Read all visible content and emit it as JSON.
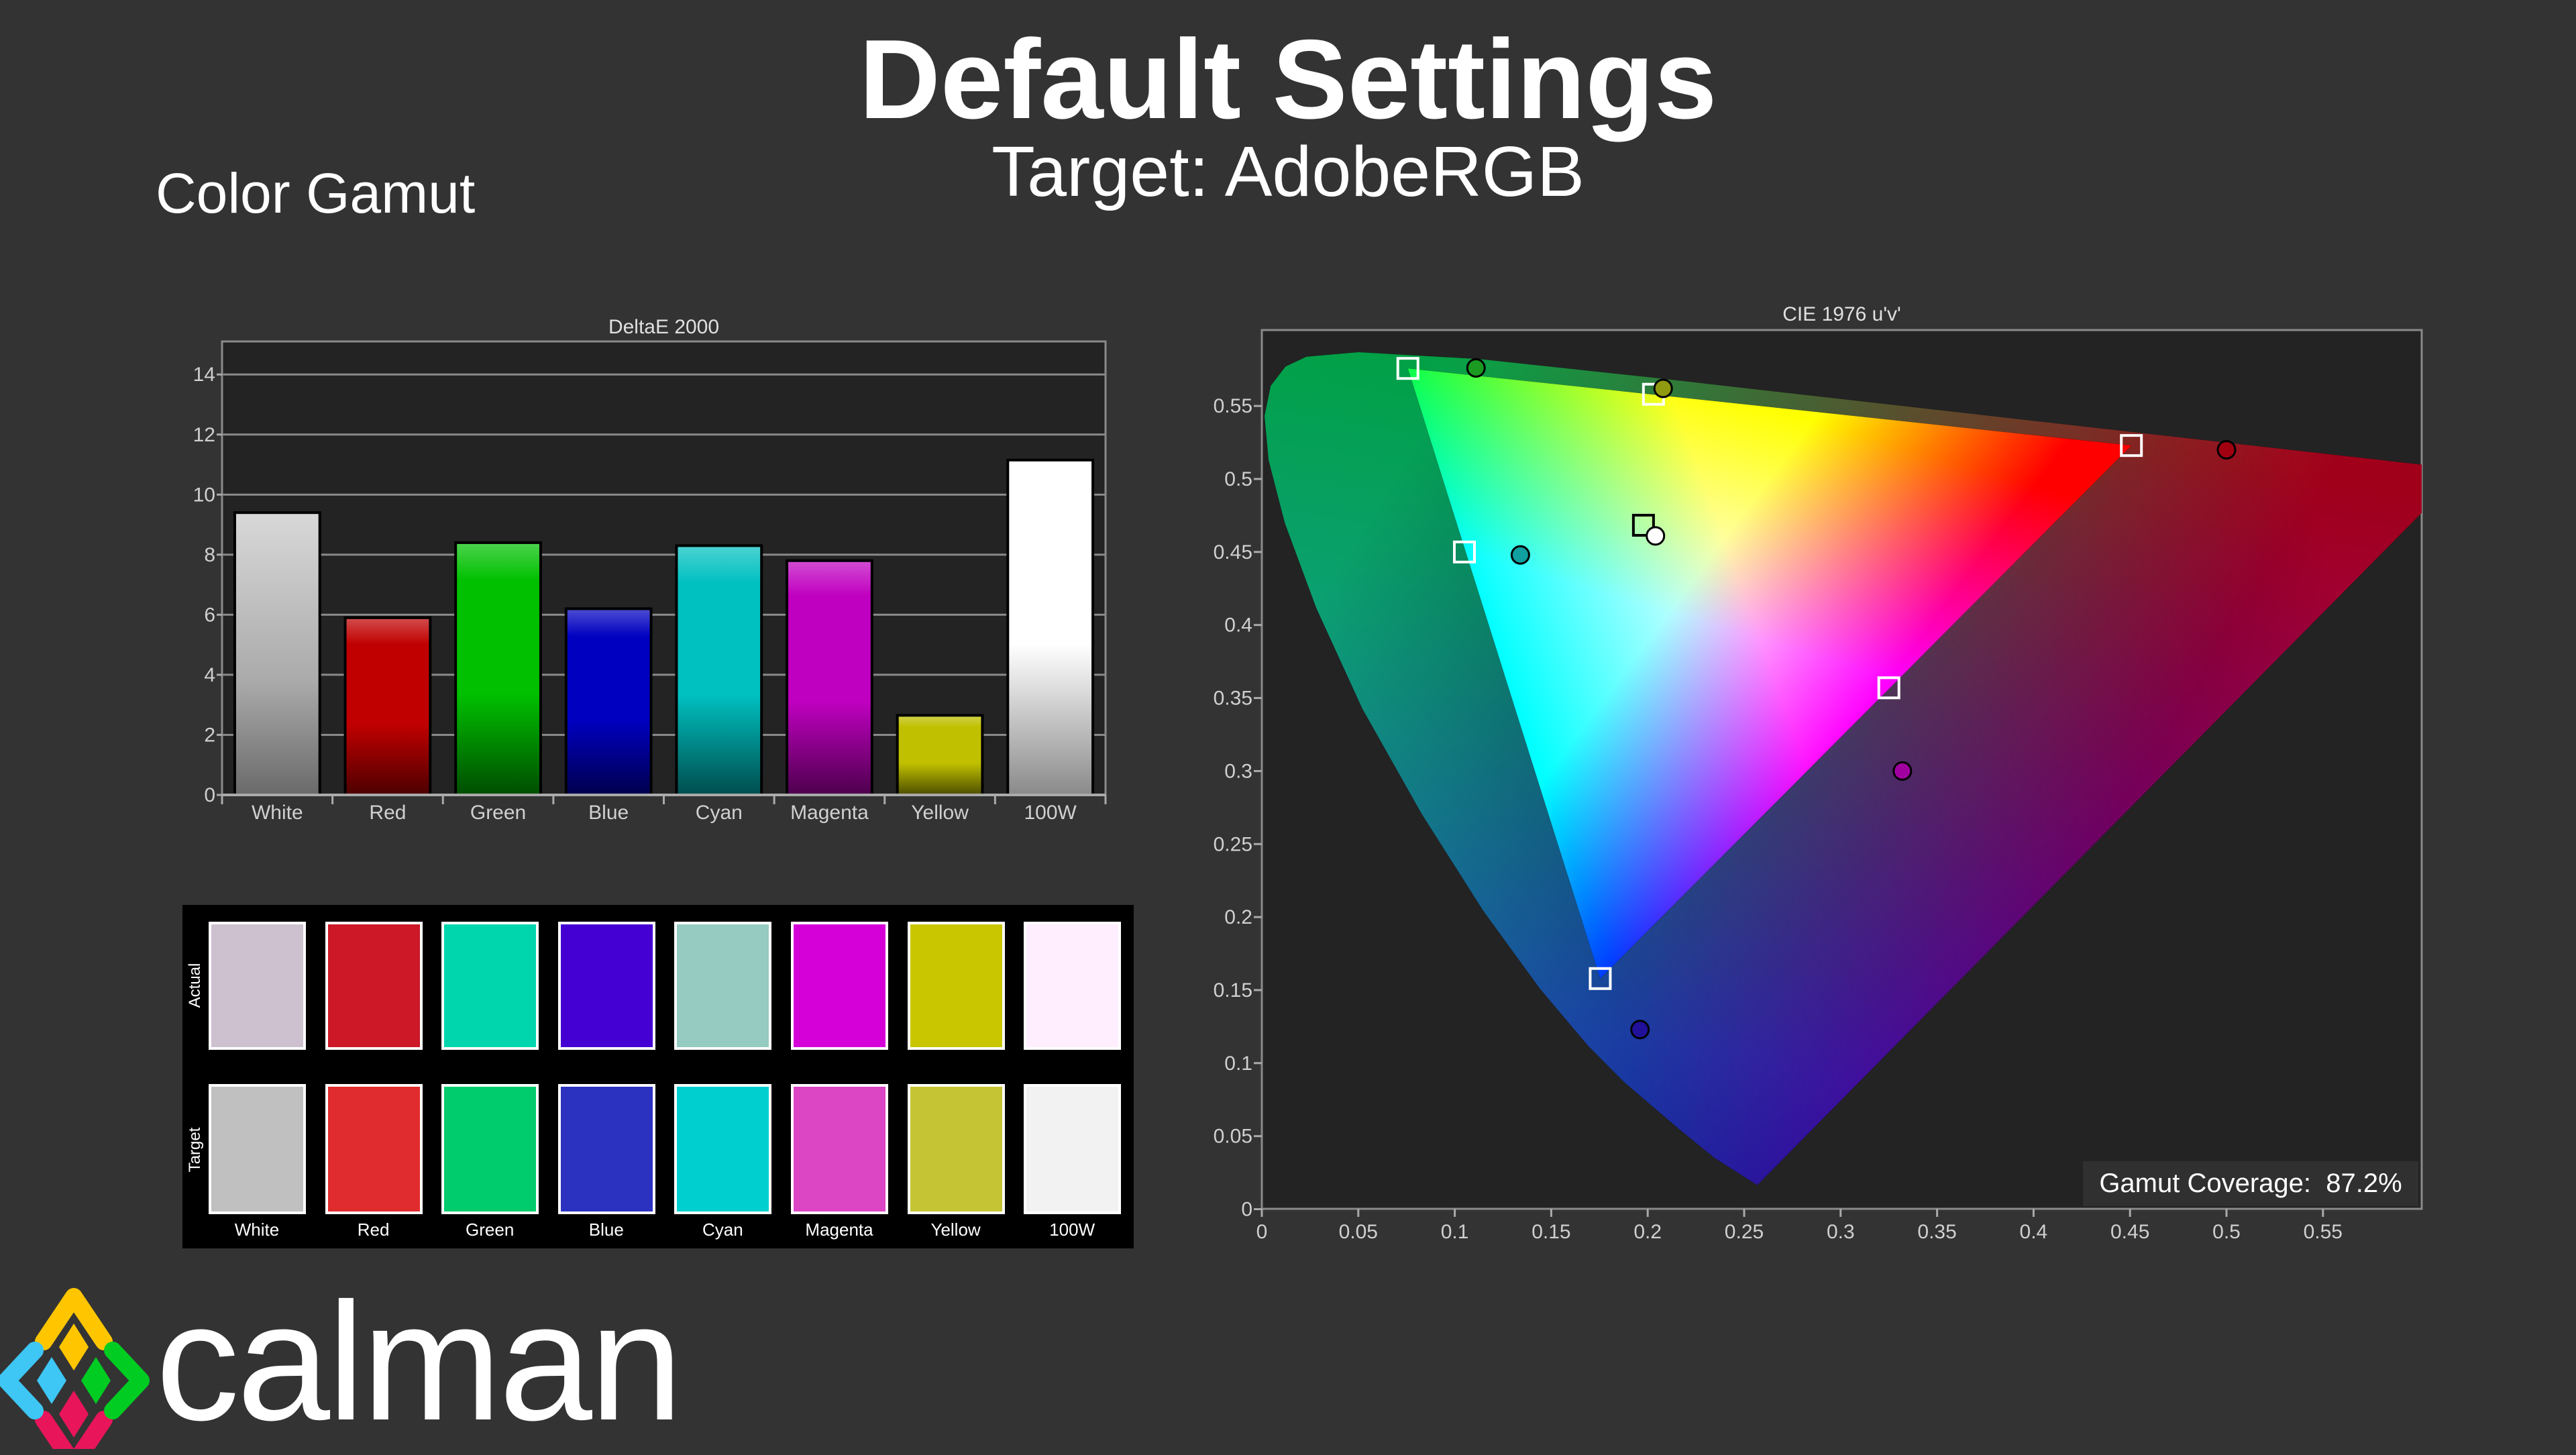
{
  "header": {
    "title": "Default Settings",
    "subtitle": "Target: AdobeRGB",
    "section": "Color Gamut"
  },
  "logo": {
    "text": "calman",
    "colors": [
      "#ffc600",
      "#3ec6f4",
      "#00cc22",
      "#e8155a"
    ]
  },
  "chart_data": [
    {
      "type": "bar",
      "title": "DeltaE 2000",
      "categories": [
        "White",
        "Red",
        "Green",
        "Blue",
        "Cyan",
        "Magenta",
        "Yellow",
        "100W"
      ],
      "values": [
        9.4,
        5.9,
        8.4,
        6.2,
        8.3,
        7.8,
        2.65,
        11.15
      ],
      "colors": [
        "#c0c0c0",
        "#c00000",
        "#00c000",
        "#0000c0",
        "#00c0c0",
        "#c000c0",
        "#c0c000",
        "#ffffff"
      ],
      "yticks": [
        "0",
        "2",
        "4",
        "6",
        "8",
        "10",
        "12",
        "14"
      ],
      "ylim": [
        0,
        15.1
      ],
      "grid": true
    },
    {
      "type": "scatter",
      "title": "CIE 1976 u'v'",
      "xlim": [
        0,
        0.6
      ],
      "ylim": [
        0,
        0.6
      ],
      "xticks": [
        "0",
        "0.05",
        "0.1",
        "0.15",
        "0.2",
        "0.25",
        "0.3",
        "0.35",
        "0.4",
        "0.45",
        "0.5",
        "0.55"
      ],
      "yticks": [
        "0",
        "0.05",
        "0.1",
        "0.15",
        "0.2",
        "0.25",
        "0.3",
        "0.35",
        "0.4",
        "0.45",
        "0.5",
        "0.55"
      ],
      "gamut_triangle": [
        [
          0.4507,
          0.5229
        ],
        [
          0.0757,
          0.5757
        ],
        [
          0.1754,
          0.1579
        ]
      ],
      "series": [
        {
          "marker": "square",
          "points": [
            {
              "label": "Red",
              "u": 0.4507,
              "v": 0.5229
            },
            {
              "label": "Green",
              "u": 0.0757,
              "v": 0.5757
            },
            {
              "label": "Blue",
              "u": 0.1754,
              "v": 0.1579
            },
            {
              "label": "White",
              "u": 0.1978,
              "v": 0.4683
            },
            {
              "label": "Cyan",
              "u": 0.105,
              "v": 0.45
            },
            {
              "label": "Magenta",
              "u": 0.325,
              "v": 0.357
            },
            {
              "label": "Yellow",
              "u": 0.203,
              "v": 0.558
            }
          ]
        },
        {
          "marker": "circle",
          "points": [
            {
              "label": "Red",
              "u": 0.5,
              "v": 0.52,
              "color": "#a00010"
            },
            {
              "label": "Green",
              "u": 0.111,
              "v": 0.576,
              "color": "#1a9a20"
            },
            {
              "label": "Blue",
              "u": 0.196,
              "v": 0.123,
              "color": "#20109a"
            },
            {
              "label": "White",
              "u": 0.204,
              "v": 0.461,
              "color": "#ffffff"
            },
            {
              "label": "Cyan",
              "u": 0.134,
              "v": 0.448,
              "color": "#10a0a0"
            },
            {
              "label": "Magenta",
              "u": 0.332,
              "v": 0.3,
              "color": "#a000a0"
            },
            {
              "label": "Yellow",
              "u": 0.208,
              "v": 0.562,
              "color": "#909a10"
            }
          ]
        }
      ],
      "annotation": {
        "label": "Gamut Coverage:",
        "value": "87.2%"
      }
    }
  ],
  "swatches": {
    "row_labels": [
      "Actual",
      "Target"
    ],
    "labels": [
      "White",
      "Red",
      "Green",
      "Blue",
      "Cyan",
      "Magenta",
      "Yellow",
      "100W"
    ],
    "actual": [
      "#cdc0cf",
      "#cc1827",
      "#00d6ae",
      "#4400d2",
      "#95cbc1",
      "#d500d8",
      "#c9c600",
      "#ffeefe"
    ],
    "target": [
      "#c0c0c0",
      "#e02c2e",
      "#00cc6e",
      "#2c32c0",
      "#00cfcf",
      "#dc45c4",
      "#c4c434",
      "#f2f2f2"
    ]
  }
}
